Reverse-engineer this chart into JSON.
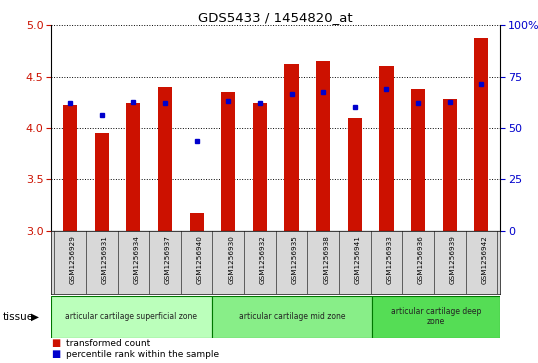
{
  "title": "GDS5433 / 1454820_at",
  "samples": [
    "GSM1256929",
    "GSM1256931",
    "GSM1256934",
    "GSM1256937",
    "GSM1256940",
    "GSM1256930",
    "GSM1256932",
    "GSM1256935",
    "GSM1256938",
    "GSM1256941",
    "GSM1256933",
    "GSM1256936",
    "GSM1256939",
    "GSM1256942"
  ],
  "red_values": [
    4.22,
    3.95,
    4.24,
    4.4,
    3.17,
    4.35,
    4.24,
    4.62,
    4.65,
    4.1,
    4.6,
    4.38,
    4.28,
    4.88
  ],
  "blue_values": [
    4.24,
    4.13,
    4.25,
    4.24,
    3.87,
    4.26,
    4.24,
    4.33,
    4.35,
    4.2,
    4.38,
    4.24,
    4.25,
    4.43
  ],
  "ylim_left": [
    3.0,
    5.0
  ],
  "ylim_right": [
    0,
    100
  ],
  "yticks_left": [
    3.0,
    3.5,
    4.0,
    4.5,
    5.0
  ],
  "yticks_right": [
    0,
    25,
    50,
    75,
    100
  ],
  "ytick_labels_right": [
    "0",
    "25",
    "50",
    "75",
    "100%"
  ],
  "zone_colors": [
    "#bbffbb",
    "#88ee88",
    "#55dd55"
  ],
  "zone_labels": [
    "articular cartilage superficial zone",
    "articular cartilage mid zone",
    "articular cartilage deep\nzone"
  ],
  "zone_starts": [
    0,
    5,
    10
  ],
  "zone_ends": [
    5,
    10,
    14
  ],
  "bar_color": "#cc1100",
  "dot_color": "#0000cc",
  "bar_width": 0.45,
  "ylabel_left_color": "#cc1100",
  "ylabel_right_color": "#0000cc",
  "grid_linestyle": "dotted",
  "bg_gray": "#d8d8d8",
  "legend": [
    {
      "color": "#cc1100",
      "label": "transformed count"
    },
    {
      "color": "#0000cc",
      "label": "percentile rank within the sample"
    }
  ]
}
